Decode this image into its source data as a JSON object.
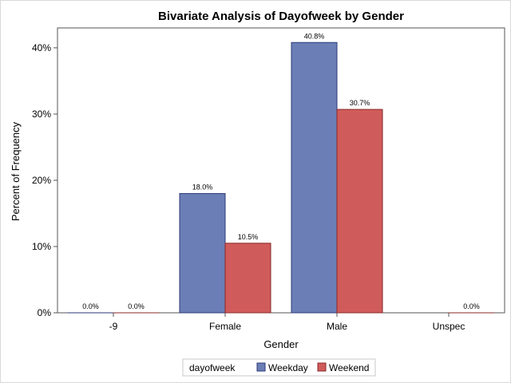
{
  "chart_data": {
    "type": "bar",
    "title": "Bivariate Analysis of Dayofweek by Gender",
    "xlabel": "Gender",
    "ylabel": "Percent of Frequency",
    "categories": [
      "-9",
      "Female",
      "Male",
      "Unspec"
    ],
    "series": [
      {
        "name": "Weekday",
        "color": "#6b7fb6",
        "stroke": "#2b3a78",
        "values": [
          0.0,
          18.0,
          40.8,
          null
        ],
        "labels": [
          "0.0%",
          "18.0%",
          "40.8%",
          null
        ]
      },
      {
        "name": "Weekend",
        "color": "#d05b5b",
        "stroke": "#8a2a2a",
        "values": [
          0.0,
          10.5,
          30.7,
          0.0
        ],
        "labels": [
          "0.0%",
          "10.5%",
          "30.7%",
          "0.0%"
        ]
      }
    ],
    "ylim": [
      0,
      43
    ],
    "yticks": [
      0,
      10,
      20,
      30,
      40
    ],
    "ytick_labels": [
      "0%",
      "10%",
      "20%",
      "30%",
      "40%"
    ],
    "legend": {
      "title": "dayofweek",
      "placement": "bottom",
      "entries": [
        "Weekday",
        "Weekend"
      ]
    },
    "grid": false
  }
}
